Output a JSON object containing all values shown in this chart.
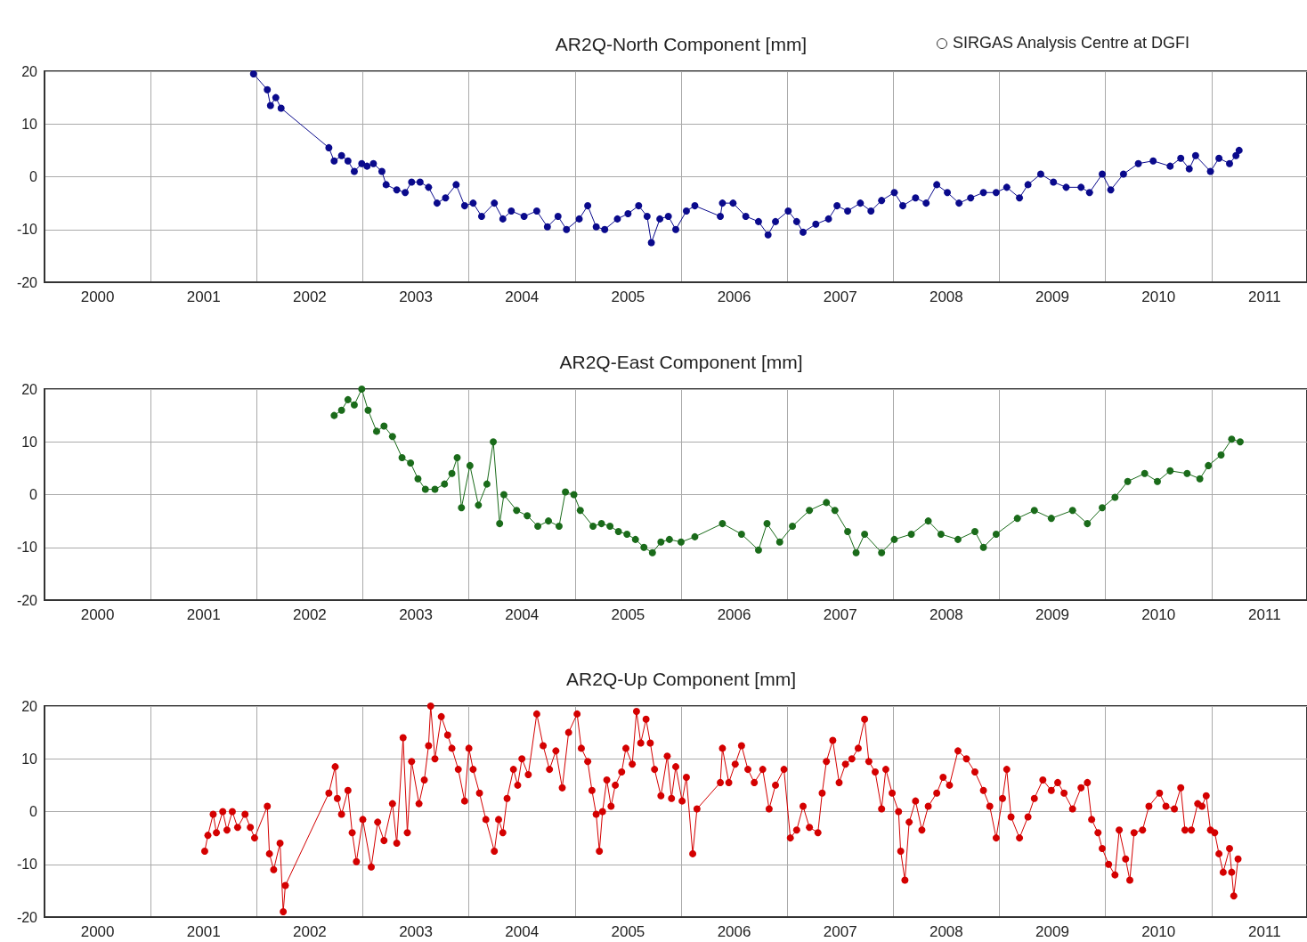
{
  "chart_data": [
    {
      "type": "line",
      "title": "AR2Q-North Component [mm]",
      "annotations": [
        "SIRGAS Analysis Centre at DGFI"
      ],
      "marker": "circle",
      "line_style": "solid",
      "grid": true,
      "xlim": [
        1999.5,
        2011.4
      ],
      "xticks": [
        2000,
        2001,
        2002,
        2003,
        2004,
        2005,
        2006,
        2007,
        2008,
        2009,
        2010,
        2011,
        {
          "value": 2000.5,
          "label": null
        },
        {
          "value": 2001.5,
          "label": null
        },
        {
          "value": 2002.5,
          "label": null
        },
        {
          "value": 2003.5,
          "label": null
        },
        {
          "value": 2004.5,
          "label": null
        },
        {
          "value": 2005.5,
          "label": null
        },
        {
          "value": 2006.5,
          "label": null
        },
        {
          "value": 2007.5,
          "label": null
        },
        {
          "value": 2008.5,
          "label": null
        },
        {
          "value": 2009.5,
          "label": null
        },
        {
          "value": 2010.5,
          "label": null
        }
      ],
      "ylim": [
        -20,
        20
      ],
      "yticks": [
        -20,
        -10,
        0,
        10,
        20
      ],
      "series": [
        {
          "color": "#0a0a8c",
          "x": [
            2001.47,
            2001.6,
            2001.63,
            2001.68,
            2001.73,
            2002.18,
            2002.23,
            2002.3,
            2002.36,
            2002.42,
            2002.49,
            2002.54,
            2002.6,
            2002.68,
            2002.72,
            2002.82,
            2002.9,
            2002.96,
            2003.04,
            2003.12,
            2003.2,
            2003.28,
            2003.38,
            2003.46,
            2003.54,
            2003.62,
            2003.74,
            2003.82,
            2003.9,
            2004.02,
            2004.14,
            2004.24,
            2004.34,
            2004.42,
            2004.54,
            2004.62,
            2004.7,
            2004.78,
            2004.9,
            2005.0,
            2005.1,
            2005.18,
            2005.22,
            2005.3,
            2005.38,
            2005.45,
            2005.55,
            2005.63,
            2005.87,
            2005.89,
            2005.99,
            2006.11,
            2006.23,
            2006.32,
            2006.39,
            2006.51,
            2006.59,
            2006.65,
            2006.77,
            2006.89,
            2006.97,
            2007.07,
            2007.19,
            2007.29,
            2007.39,
            2007.51,
            2007.59,
            2007.71,
            2007.81,
            2007.91,
            2008.01,
            2008.12,
            2008.23,
            2008.35,
            2008.47,
            2008.57,
            2008.69,
            2008.77,
            2008.89,
            2009.01,
            2009.13,
            2009.27,
            2009.35,
            2009.47,
            2009.55,
            2009.67,
            2009.81,
            2009.95,
            2010.11,
            2010.21,
            2010.29,
            2010.35,
            2010.49,
            2010.57,
            2010.67,
            2010.73,
            2010.76
          ],
          "values": [
            19.5,
            16.5,
            13.5,
            15,
            13,
            5.5,
            3,
            4,
            3,
            1,
            2.5,
            2,
            2.5,
            1,
            -1.5,
            -2.5,
            -3,
            -1,
            -1,
            -2,
            -5,
            -4,
            -1.5,
            -5.5,
            -5,
            -7.5,
            -5,
            -8,
            -6.5,
            -7.5,
            -6.5,
            -9.5,
            -7.5,
            -10,
            -8,
            -5.5,
            -9.5,
            -10,
            -8,
            -7,
            -5.5,
            -7.5,
            -12.5,
            -8,
            -7.5,
            -10,
            -6.5,
            -5.5,
            -7.5,
            -5,
            -5,
            -7.5,
            -8.5,
            -11,
            -8.5,
            -6.5,
            -8.5,
            -10.5,
            -9,
            -8,
            -5.5,
            -6.5,
            -5,
            -6.5,
            -4.5,
            -3,
            -5.5,
            -4,
            -5,
            -1.5,
            -3,
            -5,
            -4,
            -3,
            -3,
            -2,
            -4,
            -1.5,
            0.5,
            -1,
            -2,
            -2,
            -3,
            0.5,
            -2.5,
            0.5,
            2.5,
            3,
            2,
            3.5,
            1.5,
            4,
            1,
            3.5,
            2.5,
            4,
            5
          ]
        }
      ]
    },
    {
      "type": "line",
      "title": "AR2Q-East Component [mm]",
      "marker": "circle",
      "line_style": "solid",
      "grid": true,
      "xlim": [
        1999.5,
        2011.4
      ],
      "xticks": [
        2000,
        2001,
        2002,
        2003,
        2004,
        2005,
        2006,
        2007,
        2008,
        2009,
        2010,
        2011,
        {
          "value": 2000.5,
          "label": null
        },
        {
          "value": 2001.5,
          "label": null
        },
        {
          "value": 2002.5,
          "label": null
        },
        {
          "value": 2003.5,
          "label": null
        },
        {
          "value": 2004.5,
          "label": null
        },
        {
          "value": 2005.5,
          "label": null
        },
        {
          "value": 2006.5,
          "label": null
        },
        {
          "value": 2007.5,
          "label": null
        },
        {
          "value": 2008.5,
          "label": null
        },
        {
          "value": 2009.5,
          "label": null
        },
        {
          "value": 2010.5,
          "label": null
        }
      ],
      "ylim": [
        -20,
        20
      ],
      "yticks": [
        -20,
        -10,
        0,
        10,
        20
      ],
      "series": [
        {
          "color": "#1a6b1a",
          "x": [
            2002.23,
            2002.3,
            2002.36,
            2002.42,
            2002.49,
            2002.55,
            2002.63,
            2002.7,
            2002.78,
            2002.87,
            2002.95,
            2003.02,
            2003.09,
            2003.18,
            2003.27,
            2003.34,
            2003.39,
            2003.43,
            2003.51,
            2003.59,
            2003.67,
            2003.73,
            2003.79,
            2003.83,
            2003.95,
            2004.05,
            2004.15,
            2004.25,
            2004.35,
            2004.41,
            2004.49,
            2004.55,
            2004.67,
            2004.75,
            2004.83,
            2004.91,
            2004.99,
            2005.07,
            2005.15,
            2005.23,
            2005.31,
            2005.39,
            2005.5,
            2005.63,
            2005.89,
            2006.07,
            2006.23,
            2006.31,
            2006.43,
            2006.55,
            2006.71,
            2006.87,
            2006.95,
            2007.07,
            2007.15,
            2007.23,
            2007.39,
            2007.51,
            2007.67,
            2007.83,
            2007.95,
            2008.11,
            2008.27,
            2008.35,
            2008.47,
            2008.67,
            2008.83,
            2008.99,
            2009.19,
            2009.33,
            2009.47,
            2009.59,
            2009.71,
            2009.87,
            2009.99,
            2010.11,
            2010.27,
            2010.39,
            2010.47,
            2010.59,
            2010.69,
            2010.77
          ],
          "values": [
            15,
            16,
            18,
            17,
            20,
            16,
            12,
            13,
            11,
            7,
            6,
            3,
            1,
            1,
            2,
            4,
            7,
            -2.5,
            5.5,
            -2,
            2,
            10,
            -5.5,
            0,
            -3,
            -4,
            -6,
            -5,
            -6,
            0.5,
            0,
            -3,
            -6,
            -5.5,
            -6,
            -7,
            -7.5,
            -8.5,
            -10,
            -11,
            -9,
            -8.5,
            -9,
            -8,
            -5.5,
            -7.5,
            -10.5,
            -5.5,
            -9,
            -6,
            -3,
            -1.5,
            -3,
            -7,
            -11,
            -7.5,
            -11,
            -8.5,
            -7.5,
            -5,
            -7.5,
            -8.5,
            -7,
            -10,
            -7.5,
            -4.5,
            -3,
            -4.5,
            -3,
            -5.5,
            -2.5,
            -0.5,
            2.5,
            4,
            2.5,
            4.5,
            4,
            3,
            5.5,
            7.5,
            10.5,
            10
          ]
        }
      ]
    },
    {
      "type": "line",
      "title": "AR2Q-Up Component [mm]",
      "marker": "circle",
      "line_style": "solid",
      "grid": true,
      "xlim": [
        1999.5,
        2011.4
      ],
      "xticks": [
        2000,
        2001,
        2002,
        2003,
        2004,
        2005,
        2006,
        2007,
        2008,
        2009,
        2010,
        2011,
        {
          "value": 2000.5,
          "label": null
        },
        {
          "value": 2001.5,
          "label": null
        },
        {
          "value": 2002.5,
          "label": null
        },
        {
          "value": 2003.5,
          "label": null
        },
        {
          "value": 2004.5,
          "label": null
        },
        {
          "value": 2005.5,
          "label": null
        },
        {
          "value": 2006.5,
          "label": null
        },
        {
          "value": 2007.5,
          "label": null
        },
        {
          "value": 2008.5,
          "label": null
        },
        {
          "value": 2009.5,
          "label": null
        },
        {
          "value": 2010.5,
          "label": null
        }
      ],
      "ylim": [
        -20,
        20
      ],
      "yticks": [
        -20,
        -10,
        0,
        10,
        20
      ],
      "series": [
        {
          "color": "#d40000",
          "x": [
            2001.01,
            2001.04,
            2001.09,
            2001.12,
            2001.18,
            2001.22,
            2001.27,
            2001.32,
            2001.39,
            2001.44,
            2001.48,
            2001.6,
            2001.62,
            2001.66,
            2001.72,
            2001.75,
            2001.77,
            2002.18,
            2002.24,
            2002.26,
            2002.3,
            2002.36,
            2002.4,
            2002.44,
            2002.5,
            2002.58,
            2002.64,
            2002.7,
            2002.78,
            2002.82,
            2002.88,
            2002.92,
            2002.96,
            2003.03,
            2003.08,
            2003.12,
            2003.14,
            2003.18,
            2003.24,
            2003.3,
            2003.34,
            2003.4,
            2003.46,
            2003.5,
            2003.54,
            2003.6,
            2003.66,
            2003.74,
            2003.78,
            2003.82,
            2003.86,
            2003.92,
            2003.96,
            2004.0,
            2004.06,
            2004.14,
            2004.2,
            2004.26,
            2004.32,
            2004.38,
            2004.44,
            2004.52,
            2004.56,
            2004.62,
            2004.66,
            2004.7,
            2004.73,
            2004.76,
            2004.8,
            2004.84,
            2004.88,
            2004.94,
            2004.98,
            2005.04,
            2005.08,
            2005.12,
            2005.17,
            2005.21,
            2005.25,
            2005.31,
            2005.37,
            2005.41,
            2005.45,
            2005.51,
            2005.55,
            2005.61,
            2005.65,
            2005.87,
            2005.89,
            2005.95,
            2006.01,
            2006.07,
            2006.13,
            2006.19,
            2006.27,
            2006.33,
            2006.39,
            2006.47,
            2006.53,
            2006.59,
            2006.65,
            2006.71,
            2006.79,
            2006.83,
            2006.87,
            2006.93,
            2006.99,
            2007.05,
            2007.11,
            2007.17,
            2007.23,
            2007.27,
            2007.33,
            2007.39,
            2007.43,
            2007.49,
            2007.55,
            2007.57,
            2007.61,
            2007.65,
            2007.71,
            2007.77,
            2007.83,
            2007.91,
            2007.97,
            2008.03,
            2008.11,
            2008.19,
            2008.27,
            2008.35,
            2008.41,
            2008.47,
            2008.53,
            2008.57,
            2008.61,
            2008.69,
            2008.77,
            2008.83,
            2008.91,
            2008.99,
            2009.05,
            2009.11,
            2009.19,
            2009.27,
            2009.33,
            2009.37,
            2009.43,
            2009.47,
            2009.53,
            2009.59,
            2009.63,
            2009.69,
            2009.73,
            2009.77,
            2009.85,
            2009.91,
            2010.01,
            2010.07,
            2010.15,
            2010.21,
            2010.25,
            2010.31,
            2010.37,
            2010.41,
            2010.45,
            2010.49,
            2010.53,
            2010.57,
            2010.61,
            2010.67,
            2010.69,
            2010.71,
            2010.75
          ],
          "values": [
            -7.5,
            -4.5,
            -0.5,
            -4,
            0,
            -3.5,
            0,
            -3,
            -0.5,
            -3,
            -5,
            1,
            -8,
            -11,
            -6,
            -19,
            -14,
            3.5,
            8.5,
            2.5,
            -0.5,
            4,
            -4,
            -9.5,
            -1.5,
            -10.5,
            -2,
            -5.5,
            1.5,
            -6,
            14,
            -4,
            9.5,
            1.5,
            6,
            12.5,
            20,
            10,
            18,
            14.5,
            12,
            8,
            2,
            12,
            8,
            3.5,
            -1.5,
            -7.5,
            -1.5,
            -4,
            2.5,
            8,
            5,
            10,
            7,
            18.5,
            12.5,
            8,
            11.5,
            4.5,
            15,
            18.5,
            12,
            9.5,
            4,
            -0.5,
            -7.5,
            0,
            6,
            1,
            5,
            7.5,
            12,
            9,
            19,
            13,
            17.5,
            13,
            8,
            3,
            10.5,
            2.5,
            8.5,
            2,
            6.5,
            -8,
            0.5,
            5.5,
            12,
            5.5,
            9,
            12.5,
            8,
            5.5,
            8,
            0.5,
            5,
            8,
            -5,
            -3.5,
            1,
            -3,
            -4,
            3.5,
            9.5,
            13.5,
            5.5,
            9,
            10,
            12,
            17.5,
            9.5,
            7.5,
            0.5,
            8,
            3.5,
            0,
            -7.5,
            -13,
            -2,
            2,
            -3.5,
            1,
            3.5,
            6.5,
            5,
            11.5,
            10,
            7.5,
            4,
            1,
            -5,
            2.5,
            8,
            -1,
            -5,
            -1,
            2.5,
            6,
            4,
            5.5,
            3.5,
            0.5,
            4.5,
            5.5,
            -1.5,
            -4,
            -7,
            -10,
            -12,
            -3.5,
            -9,
            -13,
            -4,
            -3.5,
            1,
            3.5,
            1,
            0.5,
            4.5,
            -3.5,
            -3.5,
            1.5,
            1,
            3,
            -3.5,
            -4,
            -8,
            -11.5,
            -7,
            -11.5,
            -16,
            -9
          ]
        }
      ]
    }
  ]
}
